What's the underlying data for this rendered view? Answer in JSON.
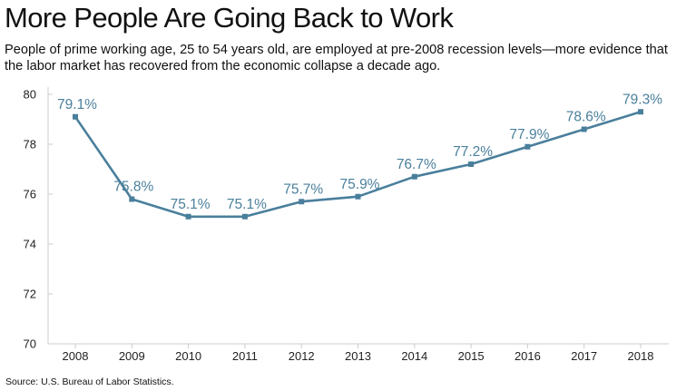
{
  "header": {
    "title": "More People Are Going Back to Work",
    "subtitle": "People of prime working age, 25 to 54 years old, are employed at pre-2008 recession levels—more evidence that the labor market has recovered from the economic collapse a decade ago."
  },
  "footer": {
    "source": "Source: U.S. Bureau of Labor Statistics."
  },
  "colors": {
    "line": "#4a7f9c",
    "label": "#4a7f9c",
    "axis": "#cccccc"
  },
  "chart_data": {
    "type": "line",
    "title": "More People Are Going Back to Work",
    "xlabel": "",
    "ylabel": "",
    "ylim": [
      70,
      80
    ],
    "yticks": [
      70,
      72,
      74,
      76,
      78,
      80
    ],
    "grid": false,
    "legend": "none",
    "categories": [
      "2008",
      "2009",
      "2010",
      "2011",
      "2012",
      "2013",
      "2014",
      "2015",
      "2016",
      "2017",
      "2018"
    ],
    "series": [
      {
        "values": [
          79.1,
          75.8,
          75.1,
          75.1,
          75.7,
          75.9,
          76.7,
          77.2,
          77.9,
          78.6,
          79.3
        ],
        "labels": [
          "79.1%",
          "75.8%",
          "75.1%",
          "75.1%",
          "75.7%",
          "75.9%",
          "76.7%",
          "77.2%",
          "77.9%",
          "78.6%",
          "79.3%"
        ]
      }
    ]
  }
}
